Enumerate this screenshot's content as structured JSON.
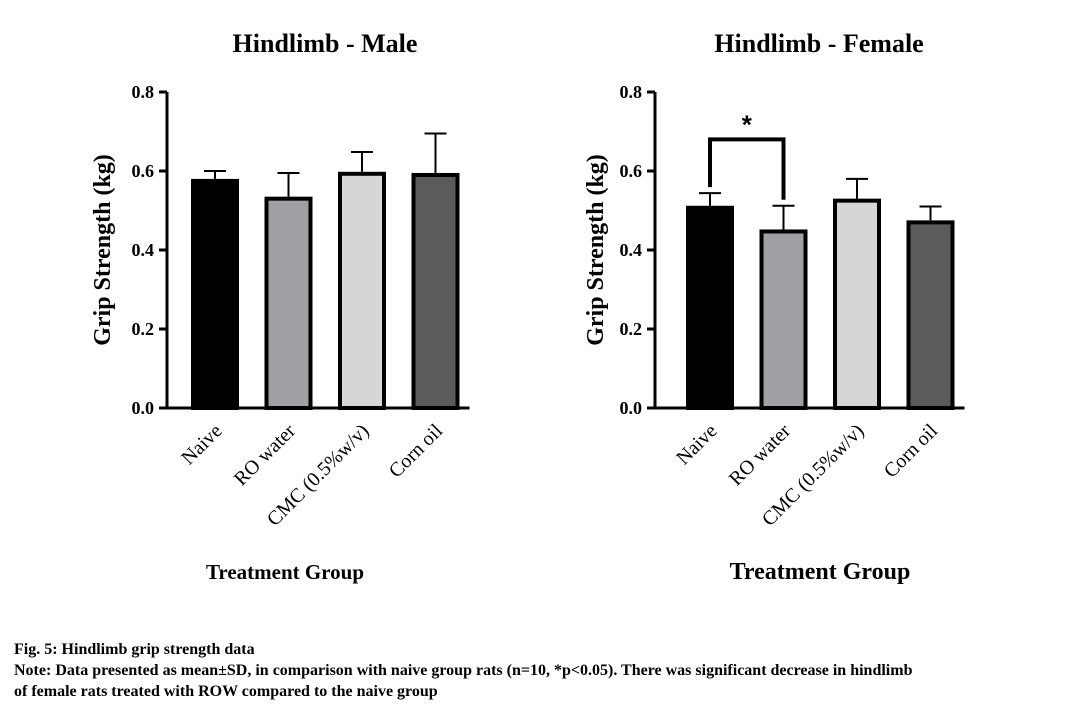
{
  "chart_data": [
    {
      "type": "bar",
      "title": "Hindlimb - Male",
      "xlabel": "Treatment Group",
      "ylabel": "Grip Strength (kg)",
      "ylim": [
        0,
        0.8
      ],
      "yticks": [
        "0.0",
        "0.2",
        "0.4",
        "0.6",
        "0.8"
      ],
      "categories": [
        "Naive",
        "RO water",
        "CMC (0.5%w/v)",
        "Corn oil"
      ],
      "values": [
        0.58,
        0.535,
        0.598,
        0.595
      ],
      "errors": [
        0.02,
        0.06,
        0.05,
        0.1
      ],
      "colors": [
        "#000000",
        "#a0a0a4",
        "#d6d6d6",
        "#5a5c5c"
      ],
      "grid": false
    },
    {
      "type": "bar",
      "title": "Hindlimb - Female",
      "xlabel": "Treatment Group",
      "ylabel": "Grip Strength (kg)",
      "ylim": [
        0,
        0.8
      ],
      "yticks": [
        "0.0",
        "0.2",
        "0.4",
        "0.6",
        "0.8"
      ],
      "categories": [
        "Naive",
        "RO water",
        "CMC (0.5%w/v)",
        "Corn oil"
      ],
      "values": [
        0.512,
        0.452,
        0.53,
        0.475
      ],
      "errors": [
        0.032,
        0.06,
        0.05,
        0.035
      ],
      "colors": [
        "#000000",
        "#a0a0a4",
        "#d6d6d6",
        "#5a5c5c"
      ],
      "grid": false,
      "annotation": {
        "text": "*",
        "from": 0,
        "to": 1,
        "level": 0.68
      }
    }
  ],
  "caption": {
    "title": "Fig. 5: Hindlimb grip strength data",
    "note_line1": "Note: Data presented as mean±SD, in comparison with naive group rats (n=10, *p<0.05). There was significant decrease in hindlimb",
    "note_line2": "of female rats treated with ROW compared to the naive group"
  }
}
